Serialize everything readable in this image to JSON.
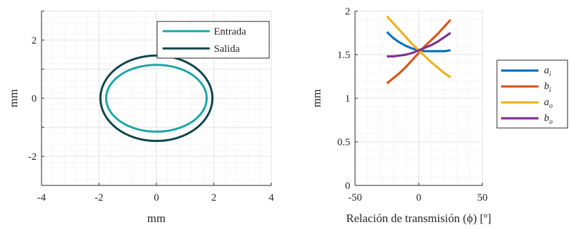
{
  "chart_data": [
    {
      "type": "line",
      "xlabel": "mm",
      "ylabel": "mm",
      "xlim": [
        -4,
        4
      ],
      "ylim": [
        -3,
        3
      ],
      "xticks": [
        -4,
        -2,
        0,
        2,
        4
      ],
      "yticks": [
        -2,
        0,
        2
      ],
      "xtick_labels": [
        "-4",
        "-2",
        "0",
        "2",
        "4"
      ],
      "ytick_labels": [
        "-2",
        "0",
        "2"
      ],
      "grid": "major-minor",
      "legend_position": "top-right",
      "series": [
        {
          "name": "Entrada",
          "shape": "ellipse",
          "center": [
            0,
            0
          ],
          "semi_axis_x": 1.75,
          "semi_axis_y": 1.15,
          "color": "#1aa5a5"
        },
        {
          "name": "Salida",
          "shape": "ellipse",
          "center": [
            0,
            0
          ],
          "semi_axis_x": 1.95,
          "semi_axis_y": 1.47,
          "color": "#0e4448"
        }
      ]
    },
    {
      "type": "line",
      "xlabel": "Relación de transmisión (ϕ) [º]",
      "ylabel": "mm",
      "xlim": [
        -50,
        50
      ],
      "ylim": [
        0,
        2
      ],
      "xticks": [
        -50,
        0,
        50
      ],
      "yticks": [
        0,
        0.5,
        1,
        1.5,
        2
      ],
      "xtick_labels": [
        "-50",
        "0",
        "50"
      ],
      "ytick_labels": [
        "0",
        "0.5",
        "1",
        "1.5",
        "2"
      ],
      "grid": "major-minor",
      "legend_position": "outside-right",
      "x": [
        -25,
        -20,
        -15,
        -10,
        -5,
        0,
        5,
        10,
        15,
        20,
        25
      ],
      "series": [
        {
          "name": "a",
          "subscript": "i",
          "color": "#0072bd",
          "values": [
            1.76,
            1.69,
            1.64,
            1.6,
            1.57,
            1.55,
            1.54,
            1.54,
            1.54,
            1.54,
            1.55
          ]
        },
        {
          "name": "b",
          "subscript": "i",
          "color": "#d95319",
          "values": [
            1.17,
            1.23,
            1.29,
            1.36,
            1.44,
            1.52,
            1.6,
            1.67,
            1.74,
            1.82,
            1.9
          ]
        },
        {
          "name": "a",
          "subscript": "o",
          "color": "#edb120",
          "values": [
            1.94,
            1.86,
            1.78,
            1.7,
            1.62,
            1.55,
            1.48,
            1.41,
            1.35,
            1.29,
            1.24
          ]
        },
        {
          "name": "b",
          "subscript": "o",
          "color": "#7e2f8e",
          "values": [
            1.48,
            1.48,
            1.49,
            1.5,
            1.52,
            1.55,
            1.58,
            1.61,
            1.65,
            1.7,
            1.75
          ]
        }
      ]
    }
  ]
}
